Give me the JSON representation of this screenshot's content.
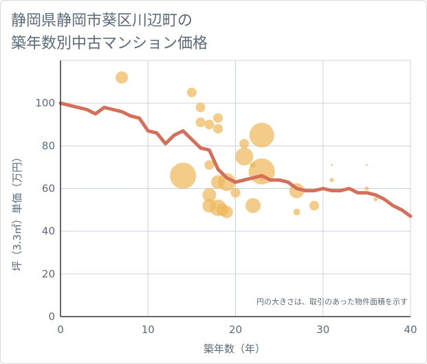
{
  "title_lines": [
    "静岡県静岡市葵区川辺町の",
    "築年数別中古マンション価格"
  ],
  "chart_data": {
    "type": "scatter",
    "xlabel": "築年数（年）",
    "ylabel": "坪（3.3㎡）単価（万円）",
    "xlim": [
      0,
      40
    ],
    "ylim": [
      0,
      120
    ],
    "x_ticks": [
      "0",
      "10",
      "20",
      "30",
      "40"
    ],
    "y_ticks": [
      "0",
      "20",
      "40",
      "60",
      "80",
      "100"
    ],
    "grid": true,
    "note": "円の大きさは、取引のあった物件面積を示す",
    "colors": {
      "bubble": "#f0b85c",
      "line": "#d4705a",
      "grid": "#c9d3de"
    },
    "bubbles": [
      {
        "x": 7,
        "y": 112,
        "size": 9
      },
      {
        "x": 15,
        "y": 105,
        "size": 7
      },
      {
        "x": 16,
        "y": 98,
        "size": 7
      },
      {
        "x": 16,
        "y": 91,
        "size": 7
      },
      {
        "x": 17,
        "y": 90,
        "size": 7
      },
      {
        "x": 18,
        "y": 93,
        "size": 7
      },
      {
        "x": 18,
        "y": 88,
        "size": 7
      },
      {
        "x": 14,
        "y": 66,
        "size": 19
      },
      {
        "x": 17,
        "y": 71,
        "size": 7
      },
      {
        "x": 17,
        "y": 57,
        "size": 10
      },
      {
        "x": 17,
        "y": 52,
        "size": 10
      },
      {
        "x": 18,
        "y": 63,
        "size": 10
      },
      {
        "x": 18,
        "y": 51,
        "size": 12
      },
      {
        "x": 18.5,
        "y": 50,
        "size": 9
      },
      {
        "x": 19,
        "y": 63,
        "size": 13
      },
      {
        "x": 19,
        "y": 49,
        "size": 9
      },
      {
        "x": 20,
        "y": 58,
        "size": 7
      },
      {
        "x": 21,
        "y": 81,
        "size": 7
      },
      {
        "x": 21,
        "y": 75,
        "size": 13
      },
      {
        "x": 22,
        "y": 71,
        "size": 4
      },
      {
        "x": 22,
        "y": 52,
        "size": 11
      },
      {
        "x": 23,
        "y": 85,
        "size": 18
      },
      {
        "x": 23,
        "y": 68,
        "size": 19
      },
      {
        "x": 23,
        "y": 65,
        "size": 4
      },
      {
        "x": 27,
        "y": 59,
        "size": 11
      },
      {
        "x": 27,
        "y": 49,
        "size": 5
      },
      {
        "x": 29,
        "y": 52,
        "size": 7
      },
      {
        "x": 31,
        "y": 71,
        "size": 1.5
      },
      {
        "x": 31,
        "y": 64,
        "size": 3
      },
      {
        "x": 35,
        "y": 71,
        "size": 1.5
      },
      {
        "x": 35,
        "y": 60,
        "size": 3
      },
      {
        "x": 36,
        "y": 55,
        "size": 3
      }
    ],
    "line": {
      "x": [
        0,
        1,
        2,
        3,
        4,
        5,
        6,
        7,
        8,
        9,
        10,
        11,
        12,
        13,
        14,
        15,
        16,
        17,
        18,
        19,
        20,
        21,
        22,
        23,
        24,
        25,
        26,
        27,
        28,
        29,
        30,
        31,
        32,
        33,
        34,
        35,
        36,
        37,
        38,
        39,
        40
      ],
      "y": [
        100,
        99,
        98,
        97,
        95,
        98,
        97,
        96,
        94,
        93,
        87,
        86,
        81,
        85,
        87,
        83,
        79,
        78,
        69,
        65,
        63,
        64,
        65,
        66,
        64,
        64,
        63,
        60,
        59,
        59,
        60,
        59,
        59,
        60,
        58,
        58,
        57,
        55,
        52,
        50,
        47
      ]
    }
  }
}
